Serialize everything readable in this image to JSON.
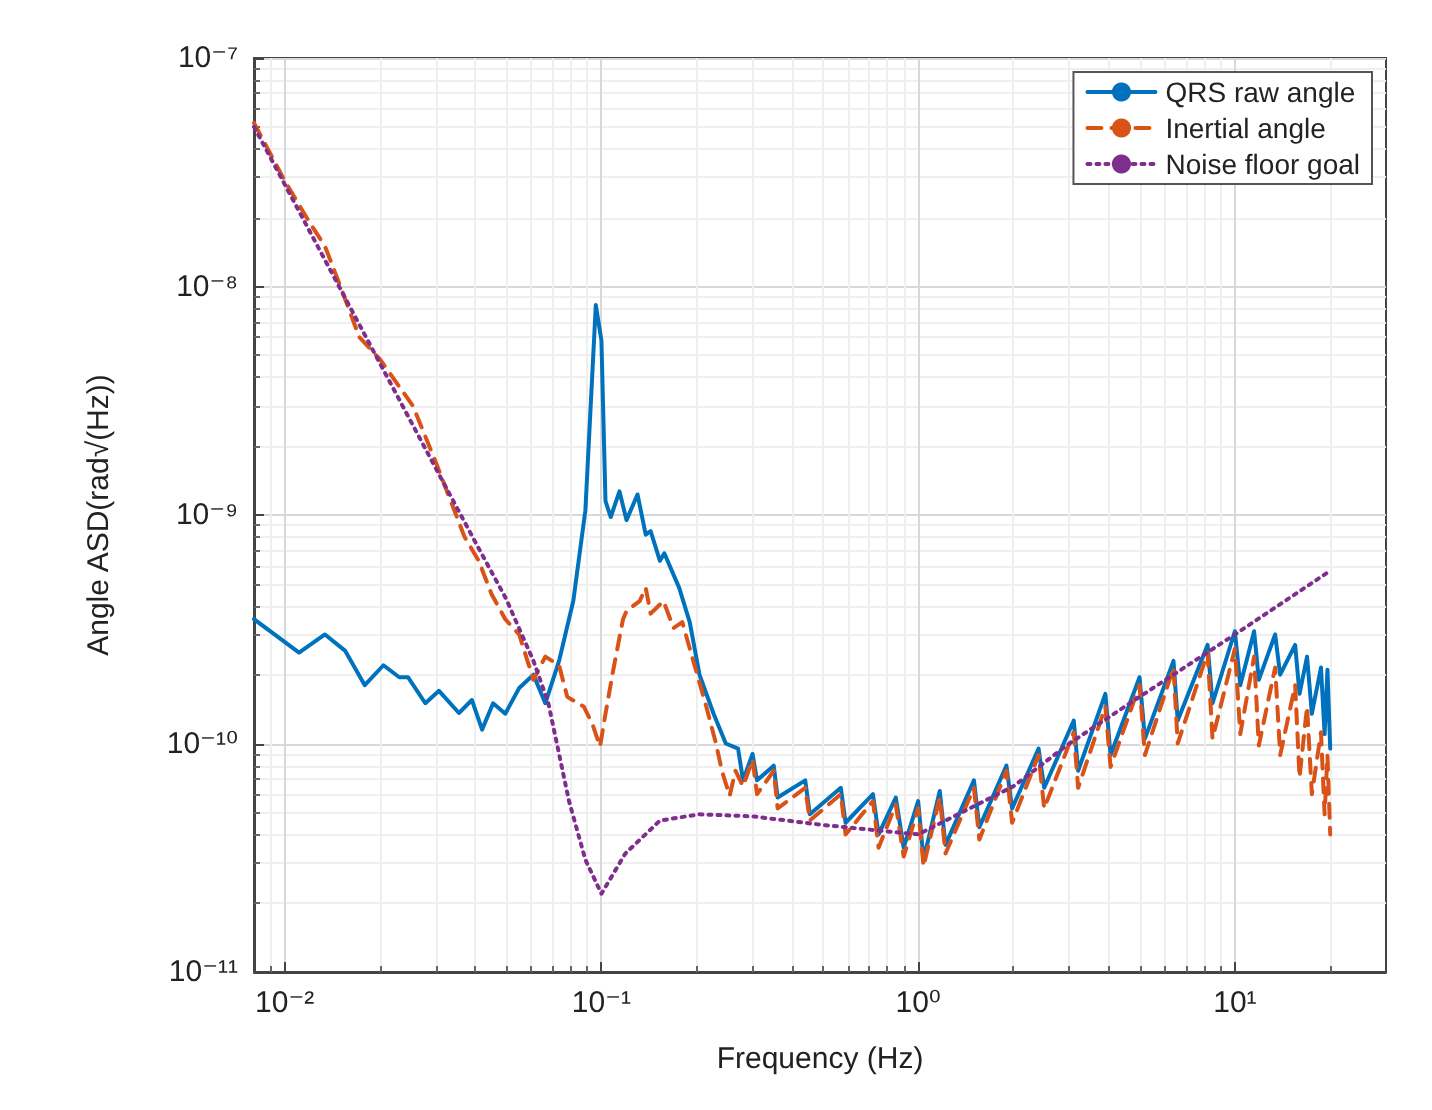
{
  "chart_data": {
    "type": "line",
    "xlabel": "Frequency (Hz)",
    "ylabel": "Angle ASD(rad√(Hz))",
    "log": "xy",
    "grid": true,
    "legend": "top right",
    "marker": "none",
    "xlim": [
      0.008,
      30
    ],
    "xticks": [
      {
        "value": 0.01,
        "label": "10⁻²"
      },
      {
        "value": 0.1,
        "label": "10⁻¹"
      },
      {
        "value": 1,
        "label": "10⁰"
      },
      {
        "value": 10,
        "label": "10¹"
      }
    ],
    "ylim": [
      1e-11,
      1e-07
    ],
    "yticks": [
      {
        "value": 1e-11,
        "label": "10⁻¹¹"
      },
      {
        "value": 1e-10,
        "label": "10⁻¹⁰"
      },
      {
        "value": 1e-09,
        "label": "10⁻⁹"
      },
      {
        "value": 1e-08,
        "label": "10⁻⁸"
      },
      {
        "value": 1e-07,
        "label": "10⁻⁷"
      }
    ],
    "series": [
      {
        "name": "QRS raw angle",
        "color": "#0072bd",
        "line_style": "solid",
        "x": [
          0.008,
          0.0111,
          0.0134,
          0.0155,
          0.0179,
          0.0205,
          0.023,
          0.0245,
          0.0278,
          0.0307,
          0.0355,
          0.039,
          0.042,
          0.0455,
          0.0497,
          0.055,
          0.061,
          0.0665,
          0.0735,
          0.0815,
          0.089,
          0.096,
          0.1,
          0.103,
          0.107,
          0.114,
          0.12,
          0.13,
          0.138,
          0.143,
          0.153,
          0.158,
          0.176,
          0.19,
          0.204,
          0.226,
          0.247,
          0.27,
          0.28,
          0.3,
          0.31,
          0.35,
          0.36,
          0.44,
          0.455,
          0.57,
          0.59,
          0.72,
          0.75,
          0.85,
          0.9,
          1.0,
          1.04,
          1.17,
          1.22,
          1.5,
          1.56,
          1.9,
          1.98,
          2.4,
          2.5,
          3.1,
          3.2,
          3.9,
          4.05,
          5.0,
          5.2,
          6.4,
          6.6,
          8.2,
          8.5,
          10,
          10.4,
          11.5,
          11.9,
          13.4,
          13.9,
          15.5,
          16,
          16.9,
          17.5,
          18.7,
          19.2,
          19.6,
          20
        ],
        "values": [
          3.5e-10,
          2.5e-10,
          3e-10,
          2.55e-10,
          1.8e-10,
          2.2e-10,
          1.95e-10,
          1.95e-10,
          1.5e-10,
          1.7e-10,
          1.36e-10,
          1.55e-10,
          1.15e-10,
          1.5e-10,
          1.35e-10,
          1.75e-10,
          2e-10,
          1.5e-10,
          2.3e-10,
          4.2e-10,
          1.05e-09,
          8.3e-09,
          5.8e-09,
          1.15e-09,
          9.8e-10,
          1.27e-09,
          9.5e-10,
          1.23e-09,
          8.2e-10,
          8.5e-10,
          6.3e-10,
          6.8e-10,
          4.8e-10,
          3.4e-10,
          2e-10,
          1.35e-10,
          1e-10,
          9.5e-11,
          6.9e-11,
          9e-11,
          6.9e-11,
          8e-11,
          5.8e-11,
          6.9e-11,
          4.9e-11,
          6.4e-11,
          4.5e-11,
          6e-11,
          4e-11,
          5.8e-11,
          3.5e-11,
          5.6e-11,
          3.1e-11,
          6.2e-11,
          3.6e-11,
          6.9e-11,
          4.3e-11,
          8e-11,
          5.2e-11,
          9.5e-11,
          6.4e-11,
          1.26e-10,
          7.6e-11,
          1.65e-10,
          8.9e-11,
          1.95e-10,
          1.05e-10,
          2.3e-10,
          1.26e-10,
          2.7e-10,
          1.5e-10,
          3.1e-10,
          1.8e-10,
          3.1e-10,
          1.9e-10,
          3e-10,
          2e-10,
          2.7e-10,
          1.65e-10,
          2.4e-10,
          1.35e-10,
          2.15e-10,
          1.1e-10,
          2.1e-10,
          9.5e-11
        ]
      },
      {
        "name": "Inertial angle",
        "color": "#d95319",
        "line_style": "dashed",
        "x": [
          0.008,
          0.01,
          0.012,
          0.0134,
          0.015,
          0.0172,
          0.02,
          0.0254,
          0.03,
          0.037,
          0.041,
          0.045,
          0.0497,
          0.055,
          0.061,
          0.0665,
          0.0735,
          0.078,
          0.088,
          0.094,
          0.099,
          0.103,
          0.109,
          0.117,
          0.12,
          0.132,
          0.138,
          0.143,
          0.157,
          0.169,
          0.18,
          0.195,
          0.213,
          0.23,
          0.24,
          0.254,
          0.265,
          0.28,
          0.3,
          0.31,
          0.35,
          0.36,
          0.44,
          0.455,
          0.57,
          0.59,
          0.72,
          0.75,
          0.85,
          0.9,
          1.0,
          1.04,
          1.17,
          1.22,
          1.5,
          1.56,
          1.9,
          1.98,
          2.4,
          2.5,
          3.1,
          3.2,
          3.9,
          4.05,
          5.0,
          5.2,
          6.4,
          6.6,
          8.2,
          8.5,
          10,
          10.4,
          11.5,
          11.9,
          13.4,
          13.9,
          15.5,
          16,
          16.9,
          17.5,
          18.7,
          19.2,
          19.6,
          20
        ],
        "values": [
          5.2e-08,
          2.9e-08,
          1.9e-08,
          1.5e-08,
          1e-08,
          6e-09,
          4.8e-09,
          3e-09,
          1.7e-09,
          8e-10,
          6.3e-10,
          4.5e-10,
          3.5e-10,
          3e-10,
          1.9e-10,
          2.4e-10,
          2.2e-10,
          1.6e-10,
          1.45e-10,
          1.2e-10,
          9.7e-11,
          1.35e-10,
          2.1e-10,
          3.5e-10,
          3.8e-10,
          4.2e-10,
          4.8e-10,
          3.7e-10,
          4.2e-10,
          3.2e-10,
          3.4e-10,
          2.3e-10,
          1.5e-10,
          1e-10,
          7.6e-11,
          5.9e-11,
          7.6e-11,
          6.5e-11,
          8.5e-11,
          6e-11,
          7.6e-11,
          5.2e-11,
          6.4e-11,
          4.6e-11,
          6e-11,
          4e-11,
          5.6e-11,
          3.5e-11,
          5.4e-11,
          3.2e-11,
          5.2e-11,
          2.9e-11,
          5.8e-11,
          3.3e-11,
          6.4e-11,
          3.8e-11,
          7.6e-11,
          4.5e-11,
          8.9e-11,
          5.2e-11,
          1.12e-10,
          6.4e-11,
          1.45e-10,
          7.9e-11,
          1.8e-10,
          8.9e-11,
          2.15e-10,
          1e-10,
          2.5e-10,
          1.05e-10,
          2.6e-10,
          1.1e-10,
          2.4e-10,
          9.8e-11,
          2.15e-10,
          8.9e-11,
          1.8e-10,
          7.1e-11,
          1.45e-10,
          6e-11,
          1.12e-10,
          4.9e-11,
          8.9e-11,
          4e-11
        ]
      },
      {
        "name": "Noise floor goal",
        "color": "#7e2f8e",
        "line_style": "dotted",
        "x": [
          0.008,
          0.01,
          0.02,
          0.03,
          0.04,
          0.05,
          0.061,
          0.068,
          0.079,
          0.089,
          0.1,
          0.119,
          0.153,
          0.204,
          0.3,
          0.5,
          1,
          2,
          3,
          5,
          10,
          20
        ],
        "values": [
          5e-08,
          2.8e-08,
          4.6e-09,
          1.6e-09,
          7.6e-10,
          4.3e-10,
          2.3e-10,
          1.5e-10,
          5.6e-11,
          3.1e-11,
          2.2e-11,
          3.3e-11,
          4.6e-11,
          4.9e-11,
          4.8e-11,
          4.4e-11,
          4e-11,
          6.5e-11,
          1e-10,
          1.6e-10,
          3e-10,
          5.7e-10
        ]
      }
    ]
  }
}
